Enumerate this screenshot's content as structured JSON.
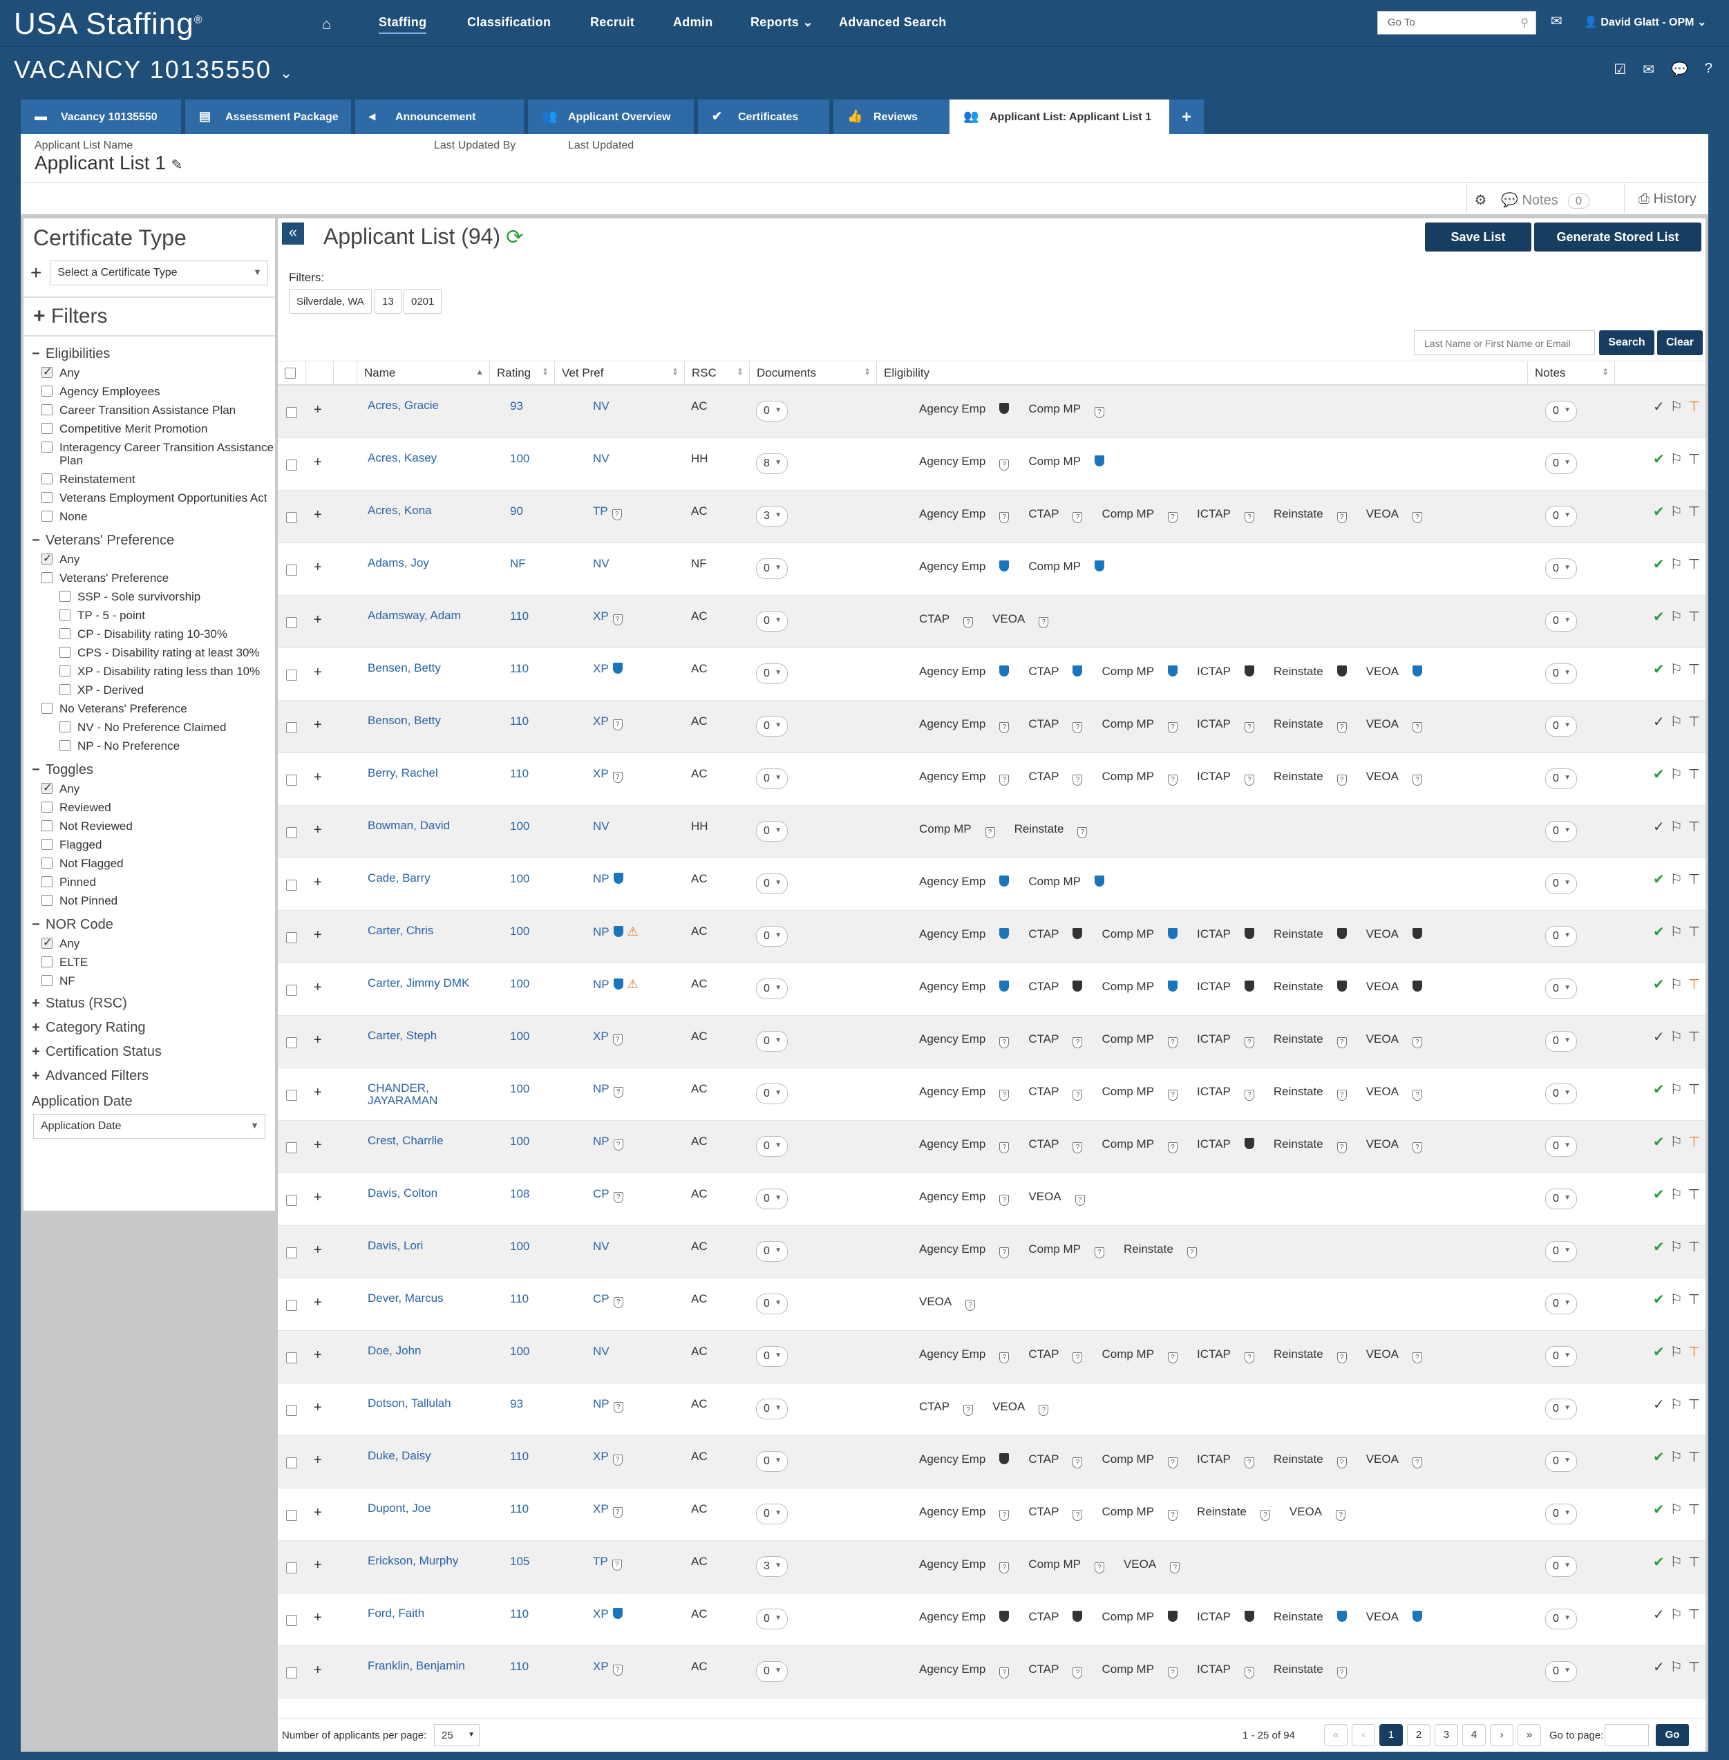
{
  "nav": {
    "logo": "USA Staffing",
    "items": [
      "Staffing",
      "Classification",
      "Recruit",
      "Admin",
      "Reports",
      "Advanced Search"
    ],
    "goto_placeholder": "Go To",
    "user": "David Glatt - OPM"
  },
  "vacancy": {
    "title": "VACANCY 10135550"
  },
  "tabs": [
    {
      "label": "Vacancy 10135550",
      "icon": "folder-icon"
    },
    {
      "label": "Assessment Package",
      "icon": "documents-icon"
    },
    {
      "label": "Announcement",
      "icon": "megaphone-icon"
    },
    {
      "label": "Applicant Overview",
      "icon": "users-icon"
    },
    {
      "label": "Certificates",
      "icon": "check-circle-icon"
    },
    {
      "label": "Reviews",
      "icon": "thumbs-up-icon"
    },
    {
      "label": "Applicant List: Applicant List 1",
      "icon": "users-icon"
    }
  ],
  "list_header": {
    "name_label": "Applicant List Name",
    "name_value": "Applicant List 1",
    "updated_by_label": "Last Updated By",
    "updated_label": "Last Updated"
  },
  "toolbar": {
    "notes": "Notes",
    "notes_count": "0",
    "history": "History"
  },
  "sidebar": {
    "cert_title": "Certificate Type",
    "cert_select": "Select a Certificate Type",
    "filters_title": "Filters",
    "eligibilities": {
      "title": "Eligibilities",
      "items": [
        {
          "label": "Any",
          "checked": true
        },
        {
          "label": "Agency Employees",
          "checked": false
        },
        {
          "label": "Career Transition Assistance Plan",
          "checked": false
        },
        {
          "label": "Competitive Merit Promotion",
          "checked": false
        },
        {
          "label": "Interagency Career Transition Assistance Plan",
          "checked": false
        },
        {
          "label": "Reinstatement",
          "checked": false
        },
        {
          "label": "Veterans Employment Opportunities Act",
          "checked": false
        },
        {
          "label": "None",
          "checked": false
        }
      ]
    },
    "vetpref": {
      "title": "Veterans' Preference",
      "items": [
        {
          "label": "Any",
          "checked": true,
          "sub": false
        },
        {
          "label": "Veterans' Preference",
          "checked": false,
          "sub": false
        },
        {
          "label": "SSP - Sole survivorship",
          "checked": false,
          "sub": true
        },
        {
          "label": "TP - 5 - point",
          "checked": false,
          "sub": true
        },
        {
          "label": "CP - Disability rating 10-30%",
          "checked": false,
          "sub": true
        },
        {
          "label": "CPS - Disability rating at least 30%",
          "checked": false,
          "sub": true
        },
        {
          "label": "XP - Disability rating less than 10%",
          "checked": false,
          "sub": true
        },
        {
          "label": "XP - Derived",
          "checked": false,
          "sub": true
        },
        {
          "label": "No Veterans' Preference",
          "checked": false,
          "sub": false
        },
        {
          "label": "NV - No Preference Claimed",
          "checked": false,
          "sub": true
        },
        {
          "label": "NP - No Preference",
          "checked": false,
          "sub": true
        }
      ]
    },
    "toggles": {
      "title": "Toggles",
      "items": [
        {
          "label": "Any",
          "checked": true
        },
        {
          "label": "Reviewed",
          "checked": false
        },
        {
          "label": "Not Reviewed",
          "checked": false
        },
        {
          "label": "Flagged",
          "checked": false
        },
        {
          "label": "Not Flagged",
          "checked": false
        },
        {
          "label": "Pinned",
          "checked": false
        },
        {
          "label": "Not Pinned",
          "checked": false
        }
      ]
    },
    "nor": {
      "title": "NOR Code",
      "items": [
        {
          "label": "Any",
          "checked": true
        },
        {
          "label": "ELTE",
          "checked": false
        },
        {
          "label": "NF",
          "checked": false
        }
      ]
    },
    "collapsed": [
      "Status (RSC)",
      "Category Rating",
      "Certification Status",
      "Advanced Filters"
    ],
    "appdate_label": "Application Date",
    "appdate_select": "Application Date"
  },
  "main": {
    "title": "Applicant List (94)",
    "save": "Save List",
    "generate": "Generate Stored List",
    "filters_label": "Filters:",
    "chips": [
      "Silverdale, WA",
      "13",
      "0201"
    ],
    "search_placeholder": "Last Name or First Name or Email",
    "search": "Search",
    "clear": "Clear",
    "columns": [
      "Name",
      "Rating",
      "Vet Pref",
      "RSC",
      "Documents",
      "Eligibility",
      "Notes"
    ]
  },
  "applicants": [
    {
      "name": "Acres, Gracie",
      "rating": "93",
      "vp": "NV",
      "vpi": "",
      "warn": false,
      "rsc": "AC",
      "docs": "0",
      "elig": [
        [
          "Agency Emp",
          "d"
        ],
        [
          "Comp MP",
          "q"
        ]
      ],
      "notes": "0",
      "reviewed": false,
      "pinned": true
    },
    {
      "name": "Acres, Kasey",
      "rating": "100",
      "vp": "NV",
      "vpi": "",
      "warn": false,
      "rsc": "HH",
      "docs": "8",
      "elig": [
        [
          "Agency Emp",
          "q"
        ],
        [
          "Comp MP",
          "b"
        ]
      ],
      "notes": "0",
      "reviewed": true,
      "pinned": false
    },
    {
      "name": "Acres, Kona",
      "rating": "90",
      "vp": "TP",
      "vpi": "q",
      "warn": false,
      "rsc": "AC",
      "docs": "3",
      "elig": [
        [
          "Agency Emp",
          "q"
        ],
        [
          "CTAP",
          "q"
        ],
        [
          "Comp MP",
          "q"
        ],
        [
          "ICTAP",
          "q"
        ],
        [
          "Reinstate",
          "q"
        ],
        [
          "VEOA",
          "q"
        ]
      ],
      "notes": "0",
      "reviewed": true,
      "pinned": false
    },
    {
      "name": "Adams, Joy",
      "rating": "NF",
      "vp": "NV",
      "vpi": "",
      "warn": false,
      "rsc": "NF",
      "docs": "0",
      "elig": [
        [
          "Agency Emp",
          "b"
        ],
        [
          "Comp MP",
          "b"
        ]
      ],
      "notes": "0",
      "reviewed": true,
      "pinned": false
    },
    {
      "name": "Adamsway, Adam",
      "rating": "110",
      "vp": "XP",
      "vpi": "q",
      "warn": false,
      "rsc": "AC",
      "docs": "0",
      "elig": [
        [
          "CTAP",
          "q"
        ],
        [
          "VEOA",
          "q"
        ]
      ],
      "notes": "0",
      "reviewed": true,
      "pinned": false
    },
    {
      "name": "Bensen, Betty",
      "rating": "110",
      "vp": "XP",
      "vpi": "b",
      "warn": false,
      "rsc": "AC",
      "docs": "0",
      "elig": [
        [
          "Agency Emp",
          "b"
        ],
        [
          "CTAP",
          "b"
        ],
        [
          "Comp MP",
          "b"
        ],
        [
          "ICTAP",
          "d"
        ],
        [
          "Reinstate",
          "d"
        ],
        [
          "VEOA",
          "b"
        ]
      ],
      "notes": "0",
      "reviewed": true,
      "pinned": false
    },
    {
      "name": "Benson, Betty",
      "rating": "110",
      "vp": "XP",
      "vpi": "q",
      "warn": false,
      "rsc": "AC",
      "docs": "0",
      "elig": [
        [
          "Agency Emp",
          "q"
        ],
        [
          "CTAP",
          "q"
        ],
        [
          "Comp MP",
          "q"
        ],
        [
          "ICTAP",
          "q"
        ],
        [
          "Reinstate",
          "q"
        ],
        [
          "VEOA",
          "q"
        ]
      ],
      "notes": "0",
      "reviewed": false,
      "pinned": false
    },
    {
      "name": "Berry, Rachel",
      "rating": "110",
      "vp": "XP",
      "vpi": "q",
      "warn": false,
      "rsc": "AC",
      "docs": "0",
      "elig": [
        [
          "Agency Emp",
          "q"
        ],
        [
          "CTAP",
          "q"
        ],
        [
          "Comp MP",
          "q"
        ],
        [
          "ICTAP",
          "q"
        ],
        [
          "Reinstate",
          "q"
        ],
        [
          "VEOA",
          "q"
        ]
      ],
      "notes": "0",
      "reviewed": true,
      "pinned": false
    },
    {
      "name": "Bowman, David",
      "rating": "100",
      "vp": "NV",
      "vpi": "",
      "warn": false,
      "rsc": "HH",
      "docs": "0",
      "elig": [
        [
          "Comp MP",
          "q"
        ],
        [
          "Reinstate",
          "q"
        ]
      ],
      "notes": "0",
      "reviewed": false,
      "pinned": false
    },
    {
      "name": "Cade, Barry",
      "rating": "100",
      "vp": "NP",
      "vpi": "b",
      "warn": false,
      "rsc": "AC",
      "docs": "0",
      "elig": [
        [
          "Agency Emp",
          "b"
        ],
        [
          "Comp MP",
          "b"
        ]
      ],
      "notes": "0",
      "reviewed": true,
      "pinned": false
    },
    {
      "name": "Carter, Chris",
      "rating": "100",
      "vp": "NP",
      "vpi": "b",
      "warn": true,
      "rsc": "AC",
      "docs": "0",
      "elig": [
        [
          "Agency Emp",
          "b"
        ],
        [
          "CTAP",
          "d"
        ],
        [
          "Comp MP",
          "b"
        ],
        [
          "ICTAP",
          "d"
        ],
        [
          "Reinstate",
          "d"
        ],
        [
          "VEOA",
          "d"
        ]
      ],
      "notes": "0",
      "reviewed": true,
      "pinned": false
    },
    {
      "name": "Carter, Jimmy DMK",
      "rating": "100",
      "vp": "NP",
      "vpi": "b",
      "warn": true,
      "rsc": "AC",
      "docs": "0",
      "elig": [
        [
          "Agency Emp",
          "b"
        ],
        [
          "CTAP",
          "d"
        ],
        [
          "Comp MP",
          "b"
        ],
        [
          "ICTAP",
          "d"
        ],
        [
          "Reinstate",
          "d"
        ],
        [
          "VEOA",
          "d"
        ]
      ],
      "notes": "0",
      "reviewed": true,
      "pinned": true
    },
    {
      "name": "Carter, Steph",
      "rating": "100",
      "vp": "XP",
      "vpi": "q",
      "warn": false,
      "rsc": "AC",
      "docs": "0",
      "elig": [
        [
          "Agency Emp",
          "q"
        ],
        [
          "CTAP",
          "q"
        ],
        [
          "Comp MP",
          "q"
        ],
        [
          "ICTAP",
          "q"
        ],
        [
          "Reinstate",
          "q"
        ],
        [
          "VEOA",
          "q"
        ]
      ],
      "notes": "0",
      "reviewed": false,
      "pinned": false
    },
    {
      "name": "CHANDER, JAYARAMAN",
      "rating": "100",
      "vp": "NP",
      "vpi": "q",
      "warn": false,
      "rsc": "AC",
      "docs": "0",
      "elig": [
        [
          "Agency Emp",
          "q"
        ],
        [
          "CTAP",
          "q"
        ],
        [
          "Comp MP",
          "q"
        ],
        [
          "ICTAP",
          "q"
        ],
        [
          "Reinstate",
          "q"
        ],
        [
          "VEOA",
          "q"
        ]
      ],
      "notes": "0",
      "reviewed": true,
      "pinned": false
    },
    {
      "name": "Crest, Charrlie",
      "rating": "100",
      "vp": "NP",
      "vpi": "q",
      "warn": false,
      "rsc": "AC",
      "docs": "0",
      "elig": [
        [
          "Agency Emp",
          "q"
        ],
        [
          "CTAP",
          "q"
        ],
        [
          "Comp MP",
          "q"
        ],
        [
          "ICTAP",
          "d"
        ],
        [
          "Reinstate",
          "q"
        ],
        [
          "VEOA",
          "q"
        ]
      ],
      "notes": "0",
      "reviewed": true,
      "pinned": true
    },
    {
      "name": "Davis, Colton",
      "rating": "108",
      "vp": "CP",
      "vpi": "q",
      "warn": false,
      "rsc": "AC",
      "docs": "0",
      "elig": [
        [
          "Agency Emp",
          "q"
        ],
        [
          "VEOA",
          "q"
        ]
      ],
      "notes": "0",
      "reviewed": true,
      "pinned": false
    },
    {
      "name": "Davis, Lori",
      "rating": "100",
      "vp": "NV",
      "vpi": "",
      "warn": false,
      "rsc": "AC",
      "docs": "0",
      "elig": [
        [
          "Agency Emp",
          "q"
        ],
        [
          "Comp MP",
          "q"
        ],
        [
          "Reinstate",
          "q"
        ]
      ],
      "notes": "0",
      "reviewed": true,
      "pinned": false
    },
    {
      "name": "Dever, Marcus",
      "rating": "110",
      "vp": "CP",
      "vpi": "q",
      "warn": false,
      "rsc": "AC",
      "docs": "0",
      "elig": [
        [
          "VEOA",
          "q"
        ]
      ],
      "notes": "0",
      "reviewed": true,
      "pinned": false
    },
    {
      "name": "Doe, John",
      "rating": "100",
      "vp": "NV",
      "vpi": "",
      "warn": false,
      "rsc": "AC",
      "docs": "0",
      "elig": [
        [
          "Agency Emp",
          "q"
        ],
        [
          "CTAP",
          "q"
        ],
        [
          "Comp MP",
          "q"
        ],
        [
          "ICTAP",
          "q"
        ],
        [
          "Reinstate",
          "q"
        ],
        [
          "VEOA",
          "q"
        ]
      ],
      "notes": "0",
      "reviewed": true,
      "pinned": true
    },
    {
      "name": "Dotson, Tallulah",
      "rating": "93",
      "vp": "NP",
      "vpi": "q",
      "warn": false,
      "rsc": "AC",
      "docs": "0",
      "elig": [
        [
          "CTAP",
          "q"
        ],
        [
          "VEOA",
          "q"
        ]
      ],
      "notes": "0",
      "reviewed": false,
      "pinned": false
    },
    {
      "name": "Duke, Daisy",
      "rating": "110",
      "vp": "XP",
      "vpi": "q",
      "warn": false,
      "rsc": "AC",
      "docs": "0",
      "elig": [
        [
          "Agency Emp",
          "d"
        ],
        [
          "CTAP",
          "q"
        ],
        [
          "Comp MP",
          "q"
        ],
        [
          "ICTAP",
          "q"
        ],
        [
          "Reinstate",
          "q"
        ],
        [
          "VEOA",
          "q"
        ]
      ],
      "notes": "0",
      "reviewed": true,
      "pinned": false
    },
    {
      "name": "Dupont, Joe",
      "rating": "110",
      "vp": "XP",
      "vpi": "q",
      "warn": false,
      "rsc": "AC",
      "docs": "0",
      "elig": [
        [
          "Agency Emp",
          "q"
        ],
        [
          "CTAP",
          "q"
        ],
        [
          "Comp MP",
          "q"
        ],
        [
          "Reinstate",
          "q"
        ],
        [
          "VEOA",
          "q"
        ]
      ],
      "notes": "0",
      "reviewed": true,
      "pinned": false
    },
    {
      "name": "Erickson, Murphy",
      "rating": "105",
      "vp": "TP",
      "vpi": "q",
      "warn": false,
      "rsc": "AC",
      "docs": "3",
      "elig": [
        [
          "Agency Emp",
          "q"
        ],
        [
          "Comp MP",
          "q"
        ],
        [
          "VEOA",
          "q"
        ]
      ],
      "notes": "0",
      "reviewed": true,
      "pinned": false
    },
    {
      "name": "Ford, Faith",
      "rating": "110",
      "vp": "XP",
      "vpi": "b",
      "warn": false,
      "rsc": "AC",
      "docs": "0",
      "elig": [
        [
          "Agency Emp",
          "d"
        ],
        [
          "CTAP",
          "d"
        ],
        [
          "Comp MP",
          "d"
        ],
        [
          "ICTAP",
          "d"
        ],
        [
          "Reinstate",
          "b"
        ],
        [
          "VEOA",
          "b"
        ]
      ],
      "notes": "0",
      "reviewed": false,
      "pinned": false
    },
    {
      "name": "Franklin, Benjamin",
      "rating": "110",
      "vp": "XP",
      "vpi": "q",
      "warn": false,
      "rsc": "AC",
      "docs": "0",
      "elig": [
        [
          "Agency Emp",
          "q"
        ],
        [
          "CTAP",
          "q"
        ],
        [
          "Comp MP",
          "q"
        ],
        [
          "ICTAP",
          "q"
        ],
        [
          "Reinstate",
          "q"
        ]
      ],
      "notes": "0",
      "reviewed": false,
      "pinned": false
    }
  ],
  "footer": {
    "per_page_label": "Number of applicants per page:",
    "per_page": "25",
    "range": "1 - 25 of 94",
    "pages": [
      "1",
      "2",
      "3",
      "4"
    ],
    "goto_label": "Go to page:",
    "go": "Go"
  }
}
